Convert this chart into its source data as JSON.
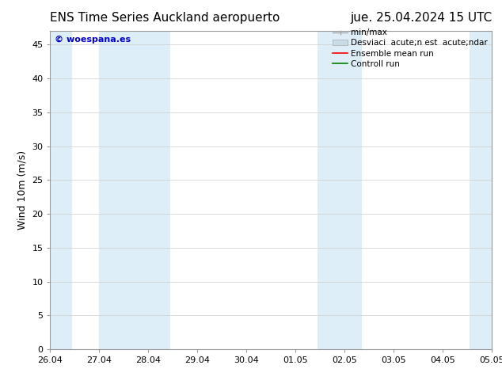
{
  "title_left": "ENS Time Series Auckland aeropuerto",
  "title_right": "jue. 25.04.2024 15 UTC",
  "ylabel": "Wind 10m (m/s)",
  "watermark": "© woespana.es",
  "legend_label_minmax": "min/max",
  "legend_label_desv": "Desviaci  acute;n est  acute;ndar",
  "legend_label_ensemble": "Ensemble mean run",
  "legend_label_control": "Controll run",
  "xtick_labels": [
    "26.04",
    "27.04",
    "28.04",
    "29.04",
    "30.04",
    "01.05",
    "02.05",
    "03.05",
    "04.05",
    "05.05"
  ],
  "ytick_values": [
    0,
    5,
    10,
    15,
    20,
    25,
    30,
    35,
    40,
    45
  ],
  "ylim": [
    0,
    47
  ],
  "xlim": [
    0,
    9
  ],
  "background_color": "#ffffff",
  "plot_bg_color": "#ffffff",
  "shaded_bands": [
    {
      "x_start": 0.0,
      "x_end": 0.4,
      "color": "#ddeef8"
    },
    {
      "x_start": 1.0,
      "x_end": 2.0,
      "color": "#ddeef8"
    },
    {
      "x_start": 2.0,
      "x_end": 2.4,
      "color": "#ddeef8"
    },
    {
      "x_start": 5.5,
      "x_end": 6.0,
      "color": "#ddeef8"
    },
    {
      "x_start": 6.0,
      "x_end": 6.5,
      "color": "#ddeef8"
    },
    {
      "x_start": 8.5,
      "x_end": 9.0,
      "color": "#ddeef8"
    }
  ],
  "title_fontsize": 11,
  "axis_fontsize": 9,
  "tick_fontsize": 8,
  "watermark_color": "#0000cc",
  "watermark_fontsize": 8,
  "grid_color": "#cccccc",
  "border_color": "#999999",
  "legend_fontsize": 7.5
}
